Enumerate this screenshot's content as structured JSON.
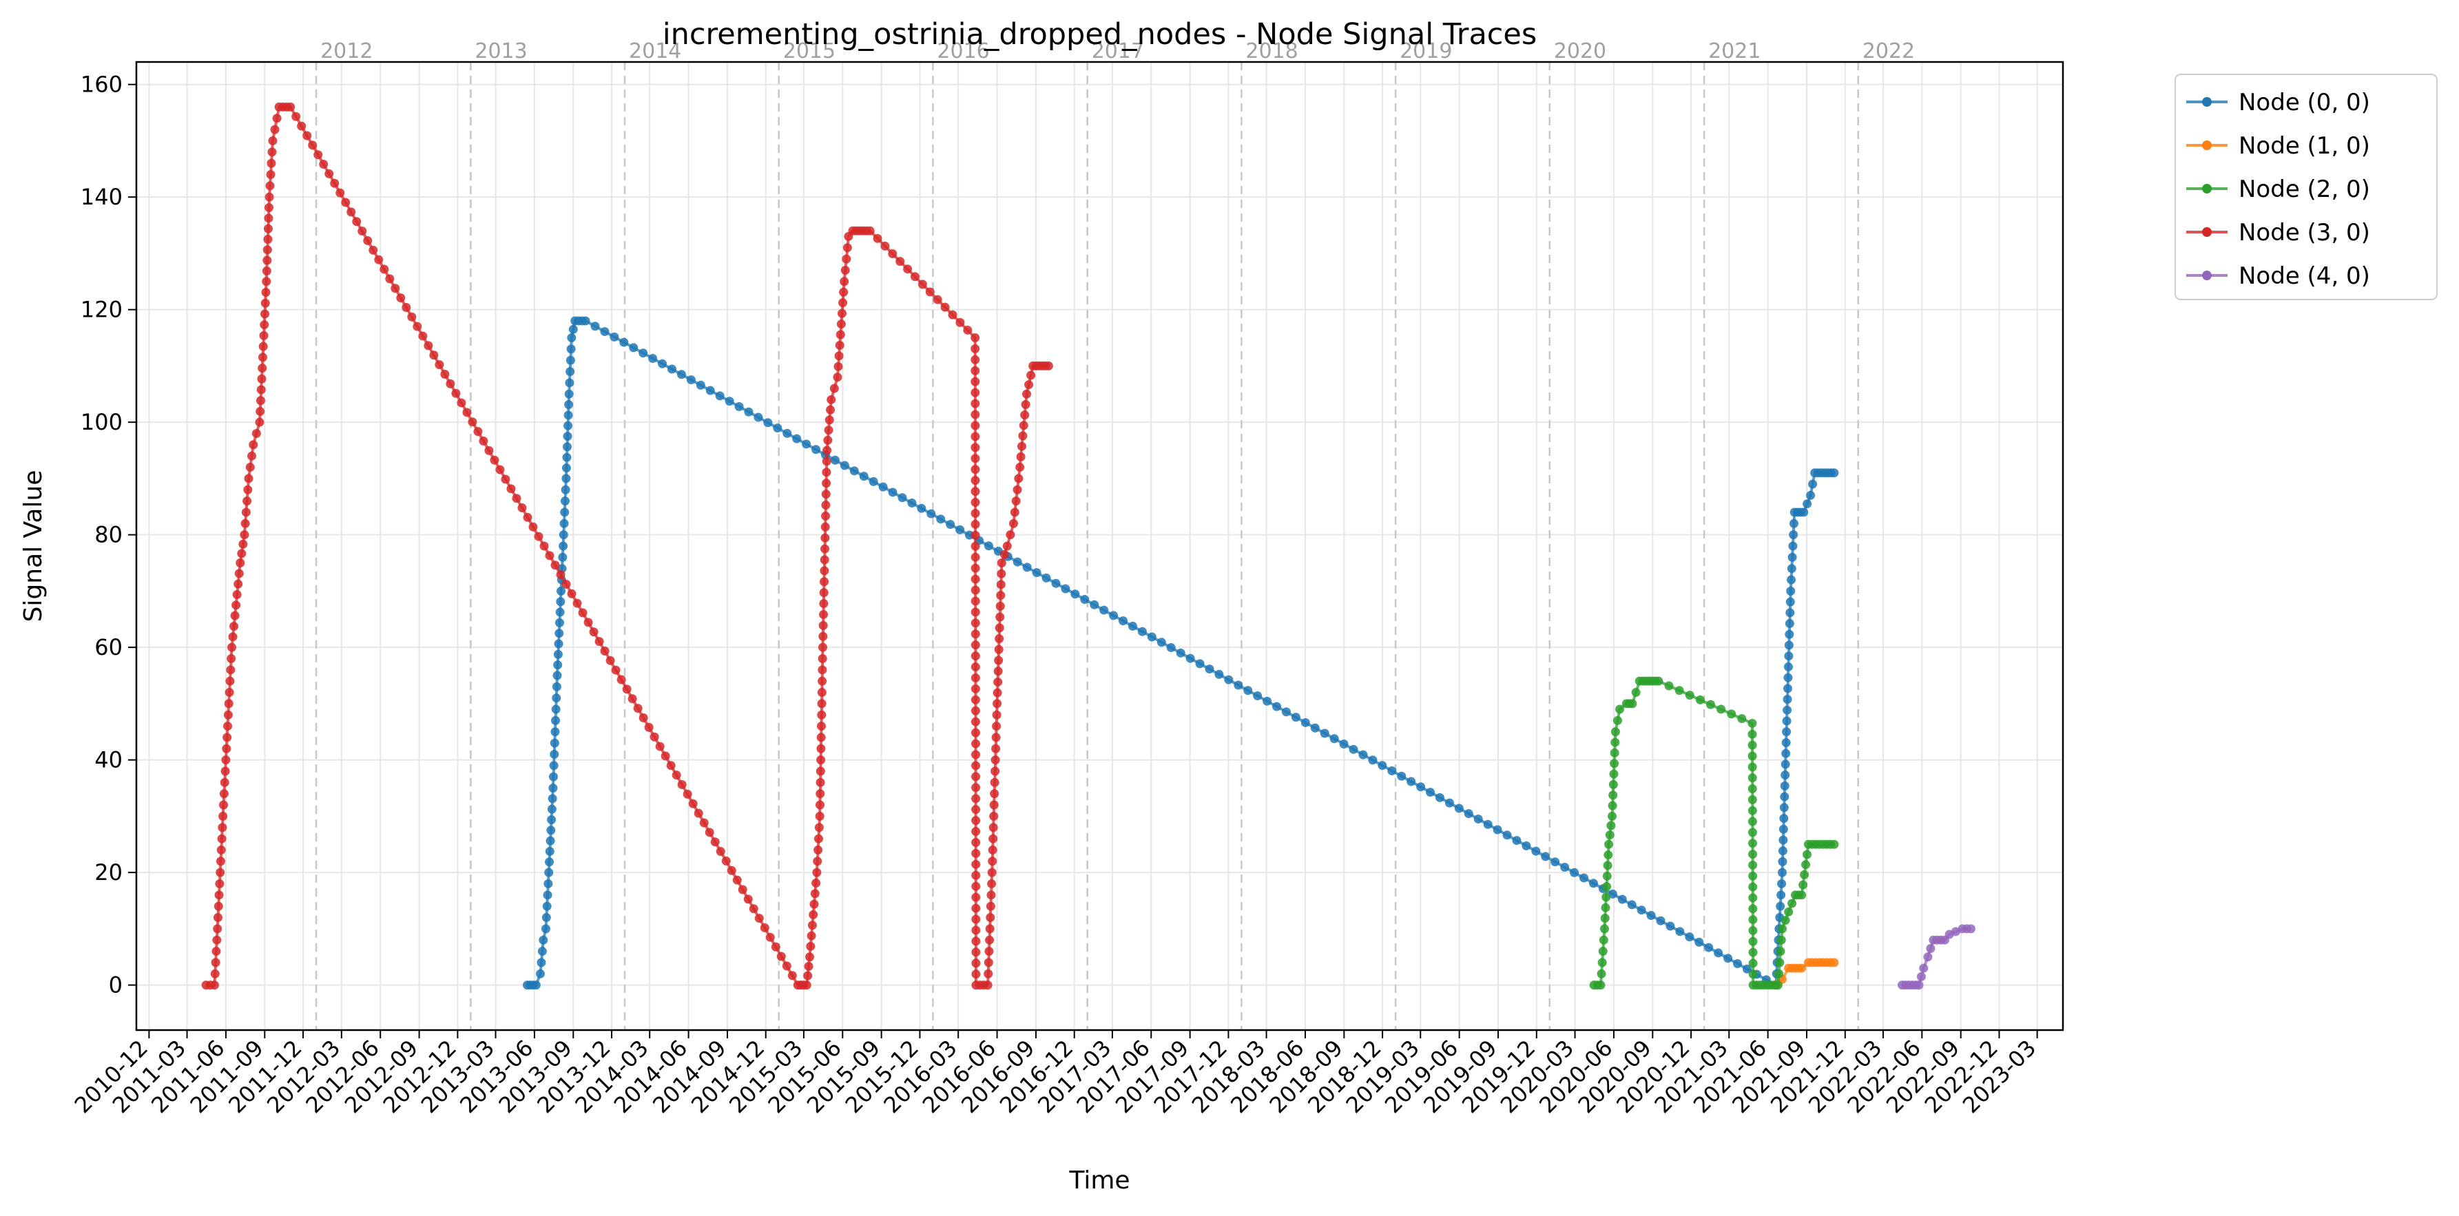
{
  "chart_data": {
    "type": "line",
    "title": "incrementing_ostrinia_dropped_nodes - Node Signal Traces",
    "xlabel": "Time",
    "ylabel": "Signal Value",
    "xlim": [
      "2010-11-01",
      "2023-05-01"
    ],
    "ylim": [
      -8,
      164
    ],
    "y_ticks": [
      0,
      20,
      40,
      60,
      80,
      100,
      120,
      140,
      160
    ],
    "x_tick_labels": [
      "2010-12",
      "2011-03",
      "2011-06",
      "2011-09",
      "2011-12",
      "2012-03",
      "2012-06",
      "2012-09",
      "2012-12",
      "2013-03",
      "2013-06",
      "2013-09",
      "2013-12",
      "2014-03",
      "2014-06",
      "2014-09",
      "2014-12",
      "2015-03",
      "2015-06",
      "2015-09",
      "2015-12",
      "2016-03",
      "2016-06",
      "2016-09",
      "2016-12",
      "2017-03",
      "2017-06",
      "2017-09",
      "2017-12",
      "2018-03",
      "2018-06",
      "2018-09",
      "2018-12",
      "2019-03",
      "2019-06",
      "2019-09",
      "2019-12",
      "2020-03",
      "2020-06",
      "2020-09",
      "2020-12",
      "2021-03",
      "2021-06",
      "2021-09",
      "2021-12",
      "2022-03",
      "2022-06",
      "2022-09",
      "2022-12",
      "2023-03"
    ],
    "year_markers": [
      "2012",
      "2013",
      "2014",
      "2015",
      "2016",
      "2017",
      "2018",
      "2019",
      "2020",
      "2021",
      "2022"
    ],
    "grid": true,
    "legend_position": "outside-top-right",
    "series": [
      {
        "name": "Node (0, 0)",
        "color": "#1f77b4",
        "points": [
          [
            "2013-05-15",
            0
          ],
          [
            "2013-06-05",
            0
          ],
          [
            "2013-06-15",
            2
          ],
          [
            "2013-06-22",
            8
          ],
          [
            "2013-06-28",
            10
          ],
          [
            "2013-07-05",
            20
          ],
          [
            "2013-07-15",
            35
          ],
          [
            "2013-07-25",
            55
          ],
          [
            "2013-08-03",
            70
          ],
          [
            "2013-08-08",
            78
          ],
          [
            "2013-08-15",
            90
          ],
          [
            "2013-08-22",
            105
          ],
          [
            "2013-08-28",
            115
          ],
          [
            "2013-09-05",
            118
          ],
          [
            "2013-09-30",
            118
          ],
          [
            "2021-06-20",
            0
          ],
          [
            "2021-07-05",
            20
          ],
          [
            "2021-07-15",
            45
          ],
          [
            "2021-07-25",
            70
          ],
          [
            "2021-08-03",
            84
          ],
          [
            "2021-08-25",
            84
          ],
          [
            "2021-09-10",
            87
          ],
          [
            "2021-09-20",
            91
          ],
          [
            "2021-11-05",
            91
          ]
        ]
      },
      {
        "name": "Node (1, 0)",
        "color": "#ff7f0e",
        "points": [
          [
            "2021-06-20",
            0
          ],
          [
            "2021-07-05",
            1
          ],
          [
            "2021-07-20",
            3
          ],
          [
            "2021-08-20",
            3
          ],
          [
            "2021-09-05",
            4
          ],
          [
            "2021-11-05",
            4
          ]
        ]
      },
      {
        "name": "Node (2, 0)",
        "color": "#2ca02c",
        "points": [
          [
            "2020-04-15",
            0
          ],
          [
            "2020-05-01",
            0
          ],
          [
            "2020-05-10",
            10
          ],
          [
            "2020-05-20",
            25
          ],
          [
            "2020-05-28",
            30
          ],
          [
            "2020-06-05",
            45
          ],
          [
            "2020-06-15",
            49
          ],
          [
            "2020-07-01",
            50
          ],
          [
            "2020-07-15",
            50
          ],
          [
            "2020-08-01",
            54
          ],
          [
            "2020-09-15",
            54
          ],
          [
            "2021-04-25",
            46.5
          ],
          [
            "2021-04-27",
            0
          ],
          [
            "2021-06-25",
            0
          ],
          [
            "2021-07-05",
            10
          ],
          [
            "2021-07-20",
            13
          ],
          [
            "2021-08-05",
            16
          ],
          [
            "2021-08-20",
            16
          ],
          [
            "2021-09-05",
            25
          ],
          [
            "2021-11-05",
            25
          ]
        ]
      },
      {
        "name": "Node (3, 0)",
        "color": "#d62728",
        "points": [
          [
            "2011-04-15",
            0
          ],
          [
            "2011-05-05",
            0
          ],
          [
            "2011-05-12",
            10
          ],
          [
            "2011-05-25",
            30
          ],
          [
            "2011-06-15",
            60
          ],
          [
            "2011-07-05",
            75
          ],
          [
            "2011-07-15",
            80
          ],
          [
            "2011-07-25",
            90
          ],
          [
            "2011-08-05",
            96
          ],
          [
            "2011-08-20",
            100
          ],
          [
            "2011-09-05",
            125
          ],
          [
            "2011-09-12",
            140
          ],
          [
            "2011-09-20",
            150
          ],
          [
            "2011-10-05",
            156
          ],
          [
            "2011-11-01",
            156
          ],
          [
            "2015-02-15",
            0
          ],
          [
            "2015-03-08",
            0
          ],
          [
            "2015-03-15",
            5
          ],
          [
            "2015-04-01",
            20
          ],
          [
            "2015-04-08",
            30
          ],
          [
            "2015-04-15",
            60
          ],
          [
            "2015-04-25",
            95
          ],
          [
            "2015-05-05",
            104
          ],
          [
            "2015-05-20",
            108
          ],
          [
            "2015-06-05",
            125
          ],
          [
            "2015-06-15",
            133
          ],
          [
            "2015-06-25",
            134
          ],
          [
            "2015-08-05",
            134
          ],
          [
            "2016-04-10",
            115
          ],
          [
            "2016-04-12",
            0
          ],
          [
            "2016-05-10",
            0
          ],
          [
            "2016-05-20",
            20
          ],
          [
            "2016-06-01",
            50
          ],
          [
            "2016-06-12",
            75
          ],
          [
            "2016-06-25",
            78
          ],
          [
            "2016-07-10",
            82
          ],
          [
            "2016-07-25",
            92
          ],
          [
            "2016-08-10",
            105
          ],
          [
            "2016-08-25",
            110
          ],
          [
            "2016-10-01",
            110
          ]
        ]
      },
      {
        "name": "Node (4, 0)",
        "color": "#9467bd",
        "points": [
          [
            "2022-04-15",
            0
          ],
          [
            "2022-05-25",
            0
          ],
          [
            "2022-06-05",
            3
          ],
          [
            "2022-06-15",
            5
          ],
          [
            "2022-06-28",
            8
          ],
          [
            "2022-07-25",
            8
          ],
          [
            "2022-08-05",
            9
          ],
          [
            "2022-08-20",
            9.5
          ],
          [
            "2022-09-05",
            10
          ],
          [
            "2022-09-25",
            10
          ]
        ]
      }
    ]
  }
}
